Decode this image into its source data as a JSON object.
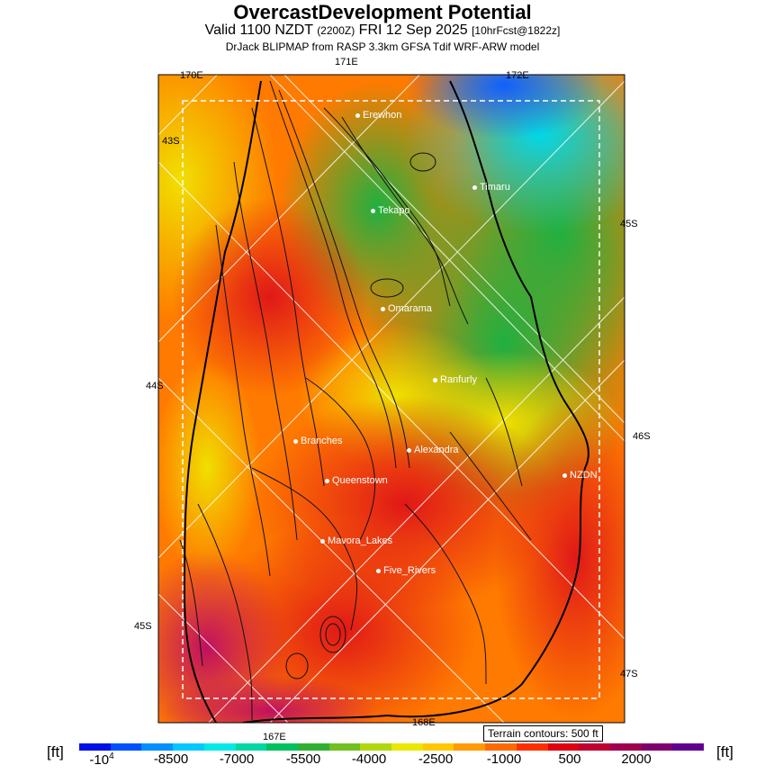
{
  "header": {
    "title": "OvercastDevelopment Potential",
    "valid_a": "Valid 1100 NZDT",
    "valid_small_a": "(2200Z)",
    "valid_b": "FRI 12 Sep 2025",
    "valid_small_b": "[10hrFcst@1822z]",
    "subtitle": "DrJack BLIPMAP from RASP 3.3km GFSA Tdif WRF-ARW model"
  },
  "axis_labels": {
    "lon_170": "170E",
    "lon_171": "171E",
    "lon_172": "172E",
    "lon_167": "167E",
    "lon_168": "168E",
    "lat_43_left": "43S",
    "lat_44_left": "44S",
    "lat_45_left": "45S",
    "lat_45_right": "45S",
    "lat_46_right": "46S",
    "lat_47_right": "47S"
  },
  "places": [
    {
      "name": "Erewhon"
    },
    {
      "name": "Timaru"
    },
    {
      "name": "Tekapo"
    },
    {
      "name": "Omarama"
    },
    {
      "name": "Ranfurly"
    },
    {
      "name": "Branches"
    },
    {
      "name": "Alexandra"
    },
    {
      "name": "NZDN"
    },
    {
      "name": "Queenstown"
    },
    {
      "name": "Mavora_Lakes"
    },
    {
      "name": "Five_Rivers"
    }
  ],
  "terrain_note": "Terrain contours: 500 ft",
  "colorbar": {
    "unit_left": "[ft]",
    "unit_right": "[ft]",
    "tick_first_base": "-10",
    "tick_first_exp": "4",
    "ticks": [
      "-8500",
      "-7000",
      "-5500",
      "-4000",
      "-2500",
      "-1000",
      "500",
      "2000"
    ],
    "colors": [
      "#0010e8",
      "#0050ff",
      "#0090ff",
      "#00c8ff",
      "#00e8e8",
      "#00d8a0",
      "#00c060",
      "#30b030",
      "#70c020",
      "#b0d810",
      "#e8e800",
      "#ffc800",
      "#ff9a00",
      "#ff6a00",
      "#ff3000",
      "#e00010",
      "#c00030",
      "#a00050",
      "#800070",
      "#600090"
    ]
  }
}
